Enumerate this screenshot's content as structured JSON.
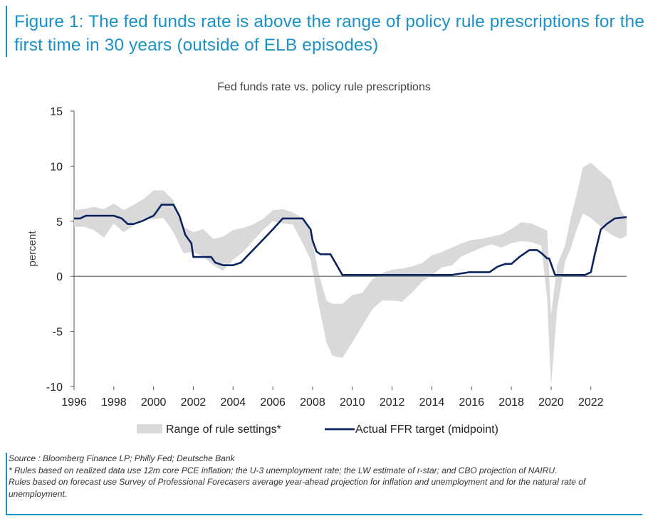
{
  "figure": {
    "title": "Figure 1: The fed funds rate is above the range of policy rule prescriptions for the first time in 30 years (outside of ELB episodes)"
  },
  "chart_data": {
    "type": "area",
    "title": "Fed funds rate vs. policy rule prescriptions",
    "xlabel": "",
    "ylabel": "percent",
    "xlim": [
      1996,
      2023.8
    ],
    "ylim": [
      -10,
      15
    ],
    "xticks": [
      "1996",
      "1998",
      "2000",
      "2002",
      "2004",
      "2006",
      "2008",
      "2010",
      "2012",
      "2014",
      "2016",
      "2018",
      "2020",
      "2022"
    ],
    "yticks": [
      "15",
      "10",
      "5",
      "0",
      "-5",
      "-10"
    ],
    "grid": false,
    "legend_position": "bottom",
    "colors": {
      "band": "#d9d9d9",
      "line": "#0b2460"
    },
    "series": [
      {
        "name": "Range of rule settings*",
        "kind": "band",
        "x": [
          1996.0,
          1996.5,
          1997.0,
          1997.5,
          1998.0,
          1998.5,
          1999.0,
          1999.5,
          2000.0,
          2000.5,
          2001.0,
          2001.5,
          2002.0,
          2002.5,
          2003.0,
          2003.5,
          2004.0,
          2004.5,
          2005.0,
          2005.5,
          2006.0,
          2006.5,
          2007.0,
          2007.5,
          2007.9,
          2008.3,
          2008.7,
          2009.0,
          2009.5,
          2010.0,
          2010.5,
          2011.0,
          2011.5,
          2012.0,
          2012.5,
          2013.0,
          2013.5,
          2014.0,
          2014.5,
          2015.0,
          2015.5,
          2016.0,
          2016.5,
          2017.0,
          2017.5,
          2018.0,
          2018.5,
          2019.0,
          2019.5,
          2019.8,
          2020.0,
          2020.3,
          2020.7,
          2021.0,
          2021.3,
          2021.6,
          2022.0,
          2022.5,
          2023.0,
          2023.5,
          2023.8
        ],
        "low": [
          4.5,
          4.5,
          4.2,
          3.5,
          4.8,
          4.0,
          4.6,
          5.3,
          5.2,
          5.3,
          4.0,
          2.1,
          2.2,
          1.8,
          1.0,
          0.5,
          1.5,
          2.2,
          3.2,
          4.2,
          5.0,
          4.8,
          4.7,
          3.0,
          1.5,
          -2.5,
          -6.0,
          -7.2,
          -7.4,
          -6.0,
          -4.5,
          -3.0,
          -2.2,
          -2.2,
          -2.3,
          -1.5,
          -0.5,
          0.1,
          0.8,
          1.0,
          1.8,
          2.2,
          2.6,
          2.9,
          2.6,
          3.0,
          3.2,
          3.1,
          2.8,
          -2.0,
          -10.0,
          -3.0,
          1.3,
          2.6,
          4.3,
          5.7,
          5.3,
          4.5,
          3.8,
          3.4,
          3.7
        ],
        "high": [
          6.0,
          6.1,
          6.3,
          6.1,
          6.6,
          6.0,
          6.5,
          7.0,
          7.8,
          7.8,
          6.9,
          4.5,
          4.0,
          4.3,
          3.4,
          3.6,
          4.2,
          4.4,
          4.7,
          5.2,
          6.0,
          6.1,
          5.8,
          5.3,
          4.0,
          0.3,
          -2.2,
          -2.5,
          -2.5,
          -1.7,
          -1.5,
          -0.3,
          0.3,
          0.6,
          0.7,
          0.9,
          1.2,
          1.9,
          2.2,
          2.6,
          3.0,
          3.3,
          3.4,
          3.6,
          3.8,
          4.3,
          4.9,
          4.8,
          4.4,
          4.2,
          -3.5,
          1.0,
          2.8,
          5.4,
          7.5,
          9.9,
          10.3,
          9.5,
          8.7,
          6.0,
          5.2
        ]
      },
      {
        "name": "Actual FFR target (midpoint)",
        "kind": "line",
        "x": [
          1996.0,
          1996.3,
          1996.6,
          1997.0,
          1997.5,
          1998.0,
          1998.4,
          1998.7,
          1999.0,
          1999.4,
          1999.7,
          2000.0,
          2000.4,
          2000.7,
          2001.0,
          2001.3,
          2001.6,
          2001.9,
          2002.0,
          2002.5,
          2002.9,
          2003.1,
          2003.5,
          2004.0,
          2004.4,
          2004.8,
          2005.2,
          2005.6,
          2006.0,
          2006.5,
          2007.0,
          2007.5,
          2007.7,
          2007.9,
          2008.0,
          2008.2,
          2008.4,
          2008.9,
          2009.5,
          2012.0,
          2014.5,
          2015.0,
          2015.9,
          2016.9,
          2017.3,
          2017.7,
          2018.0,
          2018.4,
          2018.9,
          2019.3,
          2019.5,
          2019.8,
          2019.9,
          2020.2,
          2021.0,
          2021.7,
          2022.0,
          2022.2,
          2022.5,
          2022.8,
          2023.2,
          2023.8
        ],
        "y": [
          5.25,
          5.25,
          5.5,
          5.5,
          5.5,
          5.5,
          5.25,
          4.75,
          4.75,
          5.0,
          5.25,
          5.5,
          6.5,
          6.5,
          6.5,
          5.5,
          3.75,
          3.0,
          1.75,
          1.75,
          1.75,
          1.25,
          1.0,
          1.0,
          1.25,
          2.0,
          2.75,
          3.5,
          4.25,
          5.25,
          5.25,
          5.25,
          4.75,
          4.25,
          3.25,
          2.25,
          2.0,
          2.0,
          0.125,
          0.125,
          0.125,
          0.125,
          0.375,
          0.375,
          0.875,
          1.125,
          1.125,
          1.75,
          2.375,
          2.375,
          2.125,
          1.625,
          1.625,
          0.125,
          0.125,
          0.125,
          0.375,
          2.0,
          4.25,
          4.75,
          5.25,
          5.375
        ]
      }
    ]
  },
  "footer": {
    "source": "Source : Bloomberg Finance LP; Philly Fed; Deutsche Bank",
    "note1": "* Rules based on realized data use 12m core PCE inflation; the U-3 unemployment rate; the LW estimate of r-star; and CBO projection of NAIRU.",
    "note2": "Rules based on forecast use Survey of Professional Forecasers average year-ahead projection for inflation and unemployment and for the natural rate of unemployment."
  }
}
